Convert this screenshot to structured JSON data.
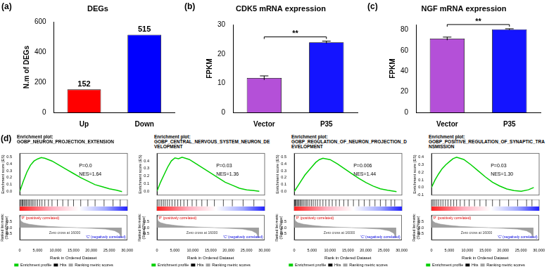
{
  "chart_data": [
    {
      "type": "bar",
      "annotation": "(a)",
      "title": "DEGs",
      "ylabel": "N.m of DEGs",
      "categories": [
        "Up",
        "Down"
      ],
      "values": [
        152,
        515
      ],
      "colors": [
        "#ff0000",
        "#0000ff"
      ],
      "ylim": [
        0,
        600
      ],
      "yticks": [
        0,
        200,
        400,
        600
      ],
      "grid": false,
      "data_labels": true
    },
    {
      "type": "bar",
      "annotation": "(b)",
      "title": "CDK5 mRNA expression",
      "ylabel": "FPKM",
      "categories": [
        "Vector",
        "P35"
      ],
      "values": [
        11.8,
        24
      ],
      "errors": [
        0.7,
        0.4
      ],
      "significance": "**",
      "colors": [
        "#b450d8",
        "#1414ff"
      ],
      "ylim": [
        0,
        30
      ],
      "yticks": [
        0,
        10,
        20,
        30
      ],
      "grid": false
    },
    {
      "type": "bar",
      "annotation": "(c)",
      "title": "NGF mRNA expression",
      "ylabel": "FPKM",
      "categories": [
        "Vector",
        "P35"
      ],
      "values": [
        71.5,
        80.5
      ],
      "errors": [
        1.5,
        0.6
      ],
      "significance": "**",
      "colors": [
        "#b450d8",
        "#1414ff"
      ],
      "ylim": [
        0,
        85
      ],
      "yticks": [
        0,
        20,
        40,
        60,
        80
      ],
      "grid": false
    },
    {
      "type": "enrichment",
      "annotation": "(d)",
      "title": "Enrichment plot:",
      "subtitle": "GOBP_NEURON_PROJECTION_EXTENSION",
      "stats": [
        "P=0.0",
        "NES=1.64"
      ],
      "ylabel": "Enrichment score (ES)",
      "y2label": "Ranked list metric (Signal2Noise)",
      "xlabel": "Rank in Ordered Dataset",
      "positive_label": "'P' (positively correlated)",
      "negative_label": "'C' (negatively correlated)",
      "zero_cross": "Zero cross at 16000",
      "legend": "bottom",
      "grid": false,
      "xlim": [
        0,
        30000
      ],
      "xticks": [
        0,
        {
          "value": 5000,
          "label": "5,000"
        },
        {
          "value": 10000,
          "label": "10,000"
        },
        {
          "value": 15000,
          "label": "15,000"
        },
        {
          "value": 20000,
          "label": "20,000"
        },
        {
          "value": 25000,
          "label": "25,000"
        },
        {
          "value": 30000,
          "label": "30,000"
        }
      ],
      "ylim": [
        -0.05,
        0.55
      ],
      "yticks": [
        {
          "value": 0,
          "label": "0.0"
        },
        0.1,
        0.2,
        0.3,
        0.4,
        0.5
      ],
      "y2lim": [
        -1,
        1
      ],
      "y2ticks": [
        -0.5,
        {
          "value": 0,
          "label": "0.0"
        },
        0.5
      ],
      "series": [
        {
          "name": "Enrichment profile",
          "color": "#00d000",
          "x": [
            0,
            1000,
            2000,
            3000,
            4000,
            5000,
            6000,
            7000,
            9000,
            11000,
            13000,
            15000,
            17000,
            19000,
            21000,
            23000,
            25000,
            27000,
            28500
          ],
          "values": [
            0,
            0.15,
            0.28,
            0.38,
            0.44,
            0.47,
            0.49,
            0.48,
            0.44,
            0.38,
            0.32,
            0.26,
            0.2,
            0.15,
            0.1,
            0.07,
            0.04,
            0.02,
            0
          ]
        },
        {
          "name": "Hits",
          "color": "#000000",
          "x": [
            150,
            400,
            700,
            900,
            1200,
            1500,
            1800,
            2100,
            2500,
            2800,
            3200,
            3600,
            4000,
            4500,
            5000,
            5600,
            6200,
            7000,
            8000,
            9000,
            10500,
            12000,
            13500,
            15000,
            17000,
            19000,
            21000,
            23500,
            26000,
            28000
          ]
        },
        {
          "name": "Ranking metric scores",
          "color": "#a0a0a0",
          "axis": "y2",
          "x": [
            0,
            300,
            1000,
            2500,
            5000,
            8000,
            12000,
            16000,
            20000,
            24000,
            26500,
            27800,
            28500
          ],
          "values": [
            0.9,
            0.55,
            0.4,
            0.28,
            0.18,
            0.1,
            0.04,
            0,
            -0.05,
            -0.12,
            -0.25,
            -0.45,
            -0.85
          ]
        }
      ]
    },
    {
      "type": "enrichment",
      "title": "Enrichment plot:",
      "subtitle": "GOBP_CENTRAL_NERVOUS_SYSTEM_NEURON_DEVELOPMENT",
      "stats": [
        "P=0.03",
        "NES=1.36"
      ],
      "ylabel": "Enrichment score (ES)",
      "y2label": "Ranked list metric (Signal2Noise)",
      "xlabel": "Rank in Ordered Dataset",
      "positive_label": "'P' (positively correlated)",
      "negative_label": "'C' (negatively correlated)",
      "zero_cross": "Zero cross at 16000",
      "legend": "bottom",
      "grid": false,
      "xlim": [
        0,
        30000
      ],
      "xticks": [
        0,
        {
          "value": 5000,
          "label": "5,000"
        },
        {
          "value": 10000,
          "label": "10,000"
        },
        {
          "value": 15000,
          "label": "15,000"
        },
        {
          "value": 20000,
          "label": "20,000"
        },
        {
          "value": 25000,
          "label": "25,000"
        },
        {
          "value": 30000,
          "label": "30,000"
        }
      ],
      "ylim": [
        -0.05,
        0.5
      ],
      "yticks": [
        {
          "value": 0,
          "label": "0.0"
        },
        0.1,
        0.2,
        0.3,
        0.4
      ],
      "y2lim": [
        -1,
        1
      ],
      "y2ticks": [
        -0.5,
        {
          "value": 0,
          "label": "0.0"
        },
        0.5
      ],
      "series": [
        {
          "name": "Enrichment profile",
          "color": "#00d000",
          "x": [
            0,
            1000,
            2000,
            3000,
            4000,
            5000,
            6000,
            7000,
            9000,
            11000,
            13000,
            15000,
            17000,
            19000,
            21000,
            23000,
            25000,
            27000,
            28500
          ],
          "values": [
            0,
            0.12,
            0.22,
            0.32,
            0.4,
            0.44,
            0.43,
            0.45,
            0.42,
            0.36,
            0.3,
            0.24,
            0.18,
            0.12,
            0.08,
            0.04,
            0.02,
            0.01,
            0
          ]
        },
        {
          "name": "Hits",
          "color": "#000000",
          "x": [
            300,
            800,
            1300,
            1800,
            2300,
            2900,
            3500,
            4200,
            5000,
            5800,
            6600,
            7500,
            8500,
            9800,
            11000,
            12500,
            14000,
            16000,
            18500,
            21000,
            24000,
            27000
          ]
        },
        {
          "name": "Ranking metric scores",
          "color": "#a0a0a0",
          "axis": "y2",
          "x": [
            0,
            300,
            1000,
            2500,
            5000,
            8000,
            12000,
            16000,
            20000,
            24000,
            26500,
            27800,
            28500
          ],
          "values": [
            0.9,
            0.55,
            0.4,
            0.28,
            0.18,
            0.1,
            0.04,
            0,
            -0.05,
            -0.12,
            -0.25,
            -0.45,
            -0.85
          ]
        }
      ]
    },
    {
      "type": "enrichment",
      "title": "Enrichment plot:",
      "subtitle": "GOBP_REGULATION_OF_NEURON_PROJECTION_DEVELOPMENT",
      "stats": [
        "P=0.006",
        "NES=1.44"
      ],
      "ylabel": "Enrichment score (ES)",
      "y2label": "Ranked list metric (Signal2Noise)",
      "xlabel": "Rank in Ordered Dataset",
      "positive_label": "'P' (positively correlated)",
      "negative_label": "'C' (negatively correlated)",
      "zero_cross": "Zero cross at 16000",
      "legend": "bottom",
      "grid": false,
      "xlim": [
        0,
        30000
      ],
      "xticks": [
        0,
        {
          "value": 5000,
          "label": "5,000"
        },
        {
          "value": 10000,
          "label": "10,000"
        },
        {
          "value": 15000,
          "label": "15,000"
        },
        {
          "value": 20000,
          "label": "20,000"
        },
        {
          "value": 25000,
          "label": "25,000"
        },
        {
          "value": 30000,
          "label": "30,000"
        }
      ],
      "ylim": [
        -0.05,
        0.55
      ],
      "yticks": [
        {
          "value": 0,
          "label": "0.0"
        },
        0.1,
        0.2,
        0.3,
        0.4,
        0.5
      ],
      "y2lim": [
        -1,
        1
      ],
      "y2ticks": [
        -0.5,
        {
          "value": 0,
          "label": "0.0"
        },
        0.5
      ],
      "series": [
        {
          "name": "Enrichment profile",
          "color": "#00d000",
          "x": [
            0,
            1000,
            2000,
            3000,
            4000,
            5000,
            6000,
            7000,
            8000,
            10000,
            12000,
            14000,
            16000,
            18000,
            20000,
            22000,
            24000,
            26000,
            28500
          ],
          "values": [
            0,
            0.08,
            0.16,
            0.24,
            0.3,
            0.36,
            0.42,
            0.46,
            0.48,
            0.46,
            0.4,
            0.33,
            0.26,
            0.19,
            0.13,
            0.08,
            0.04,
            0.02,
            0
          ]
        },
        {
          "name": "Hits",
          "color": "#000000",
          "x": [
            100,
            300,
            500,
            800,
            1000,
            1300,
            1600,
            1900,
            2200,
            2600,
            3000,
            3400,
            3800,
            4300,
            4800,
            5300,
            5900,
            6500,
            7200,
            8000,
            8800,
            9700,
            10600,
            11600,
            12600,
            13800,
            15000,
            16500,
            18000,
            19500,
            21000,
            22500,
            24000,
            25500,
            27000,
            28000
          ]
        },
        {
          "name": "Ranking metric scores",
          "color": "#a0a0a0",
          "axis": "y2",
          "x": [
            0,
            300,
            1000,
            2500,
            5000,
            8000,
            12000,
            16000,
            20000,
            24000,
            26500,
            27800,
            28500
          ],
          "values": [
            0.9,
            0.55,
            0.4,
            0.28,
            0.18,
            0.1,
            0.04,
            0,
            -0.05,
            -0.12,
            -0.25,
            -0.45,
            -0.85
          ]
        }
      ]
    },
    {
      "type": "enrichment",
      "title": "Enrichment plot:",
      "subtitle": "GOBP_POSITIVE_REGULATION_OF_SYNAPTIC_TRANSMISSION",
      "stats": [
        "P=0.03",
        "NES=1.30"
      ],
      "ylabel": "Enrichment score (ES)",
      "y2label": "Ranked list metric (Signal2Noise)",
      "xlabel": "Rank in Ordered Dataset",
      "positive_label": "'P' (positively correlated)",
      "negative_label": "'C' (negatively correlated)",
      "zero_cross": "Zero cross at 16000",
      "legend": "bottom",
      "grid": false,
      "xlim": [
        0,
        30000
      ],
      "xticks": [
        0,
        {
          "value": 5000,
          "label": "5,000"
        },
        {
          "value": 10000,
          "label": "10,000"
        },
        {
          "value": 15000,
          "label": "15,000"
        },
        {
          "value": 20000,
          "label": "20,000"
        },
        {
          "value": 25000,
          "label": "25,000"
        },
        {
          "value": 30000,
          "label": "30,000"
        }
      ],
      "ylim": [
        -0.1,
        0.45
      ],
      "yticks": [
        -0.1,
        {
          "value": 0,
          "label": "0.0"
        },
        0.1,
        0.2,
        0.3,
        0.4
      ],
      "y2lim": [
        -1,
        1
      ],
      "y2ticks": [
        -0.5,
        {
          "value": 0,
          "label": "0.0"
        },
        0.5
      ],
      "series": [
        {
          "name": "Enrichment profile",
          "color": "#00d000",
          "x": [
            0,
            1000,
            2000,
            3000,
            4000,
            5000,
            6000,
            7000,
            9000,
            11000,
            13000,
            15000,
            17000,
            19000,
            21000,
            23000,
            25000,
            27000,
            28500
          ],
          "values": [
            0,
            0.1,
            0.18,
            0.25,
            0.3,
            0.34,
            0.38,
            0.4,
            0.37,
            0.3,
            0.22,
            0.14,
            0.07,
            0.02,
            -0.02,
            -0.04,
            -0.05,
            -0.03,
            0
          ]
        },
        {
          "name": "Hits",
          "color": "#000000",
          "x": [
            200,
            600,
            1000,
            1500,
            2000,
            2600,
            3200,
            3900,
            4600,
            5400,
            6200,
            7000,
            8000,
            9200,
            10500,
            12000,
            13500,
            15200,
            17000,
            19000,
            21500,
            24000,
            26500,
            28000
          ]
        },
        {
          "name": "Ranking metric scores",
          "color": "#a0a0a0",
          "axis": "y2",
          "x": [
            0,
            300,
            1000,
            2500,
            5000,
            8000,
            12000,
            16000,
            20000,
            24000,
            26500,
            27800,
            28500
          ],
          "values": [
            0.9,
            0.55,
            0.4,
            0.28,
            0.18,
            0.1,
            0.04,
            0,
            -0.05,
            -0.12,
            -0.25,
            -0.45,
            -0.85
          ]
        }
      ]
    }
  ]
}
